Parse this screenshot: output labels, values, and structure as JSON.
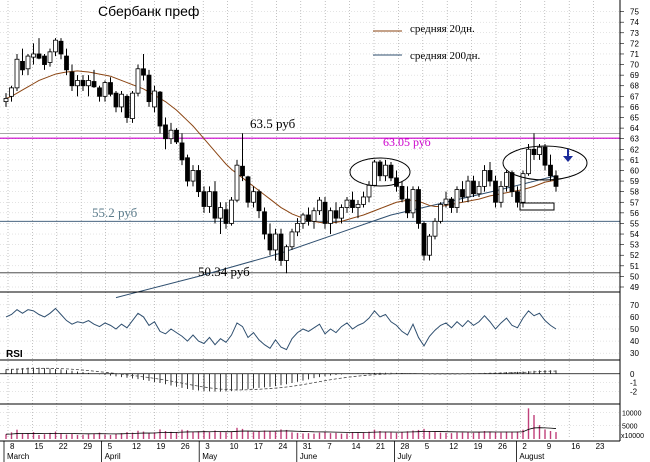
{
  "chart_data": {
    "type": "candlestick",
    "title": "Сбербанк преф",
    "legend": {
      "placement": "top-right",
      "entries": [
        {
          "name": "средняя 20дн.",
          "color": "#8b4513"
        },
        {
          "name": "средняя 200дн.",
          "color": "#2f4f6f"
        }
      ]
    },
    "price_axis": {
      "ylim": [
        49,
        76
      ],
      "ticks": [
        49,
        50,
        51,
        52,
        53,
        54,
        55,
        56,
        57,
        58,
        59,
        60,
        61,
        62,
        63,
        64,
        65,
        66,
        67,
        68,
        69,
        70,
        71,
        72,
        73,
        74,
        75
      ]
    },
    "rsi_axis": {
      "label": "RSI",
      "ylim": [
        26,
        74
      ],
      "ticks": [
        30,
        40,
        50,
        60,
        70
      ]
    },
    "macd_axis": {
      "ylim": [
        -3,
        1
      ],
      "ticks": [
        -2,
        -1,
        0
      ]
    },
    "volume_axis": {
      "ylim": [
        0,
        12000
      ],
      "ticks": [
        10000,
        5000
      ],
      "bottom_label": "x10000"
    },
    "x_axis": {
      "day_ticks": [
        "8",
        "15",
        "22",
        "29",
        "5",
        "12",
        "19",
        "26",
        "3",
        "10",
        "17",
        "24",
        "31",
        "7",
        "14",
        "21",
        "28",
        "5",
        "12",
        "19",
        "26",
        "2",
        "9",
        "16",
        "23"
      ],
      "months": [
        {
          "label": "March",
          "at": 0
        },
        {
          "label": "April",
          "at": 4
        },
        {
          "label": "May",
          "at": 8
        },
        {
          "label": "June",
          "at": 12
        },
        {
          "label": "July",
          "at": 16
        },
        {
          "label": "August",
          "at": 21
        }
      ]
    },
    "horizontal_levels": [
      {
        "value": 63.5,
        "label": "63.5 руб",
        "color": "#999999"
      },
      {
        "value": 63.05,
        "label": "63.05 руб",
        "color": "#cc00cc"
      },
      {
        "value": 55.2,
        "label": "55.2 руб",
        "color": "#2f4f6f"
      },
      {
        "value": 50.34,
        "label": "50.34 руб",
        "color": "#333333"
      }
    ],
    "ohlc": [
      [
        66.5,
        67.3,
        66.0,
        66.8
      ],
      [
        67.0,
        68.0,
        66.5,
        67.8
      ],
      [
        67.8,
        71.0,
        67.5,
        70.5
      ],
      [
        70.3,
        71.5,
        69.0,
        69.5
      ],
      [
        69.6,
        71.0,
        69.0,
        70.8
      ],
      [
        70.7,
        72.0,
        70.0,
        71.0
      ],
      [
        71.0,
        72.5,
        70.5,
        70.6
      ],
      [
        70.8,
        71.0,
        69.5,
        70.0
      ],
      [
        70.2,
        71.5,
        69.8,
        71.2
      ],
      [
        71.2,
        72.5,
        70.8,
        72.3
      ],
      [
        72.2,
        72.5,
        70.5,
        71.0
      ],
      [
        70.8,
        71.5,
        69.0,
        69.5
      ],
      [
        69.3,
        70.0,
        67.5,
        68.0
      ],
      [
        68.0,
        69.0,
        67.0,
        68.5
      ],
      [
        68.5,
        69.0,
        67.5,
        68.0
      ],
      [
        68.0,
        69.0,
        67.0,
        68.5
      ],
      [
        68.4,
        69.5,
        67.8,
        67.9
      ],
      [
        67.8,
        68.0,
        66.5,
        67.0
      ],
      [
        67.0,
        68.5,
        66.5,
        68.3
      ],
      [
        68.3,
        68.8,
        67.0,
        67.2
      ],
      [
        67.3,
        67.5,
        65.5,
        66.0
      ],
      [
        66.0,
        67.5,
        65.5,
        67.2
      ],
      [
        67.0,
        67.2,
        64.5,
        65.0
      ],
      [
        64.9,
        67.5,
        64.5,
        67.3
      ],
      [
        67.3,
        70.0,
        67.0,
        69.6
      ],
      [
        69.6,
        71.0,
        68.5,
        69.0
      ],
      [
        69.0,
        69.5,
        66.0,
        66.5
      ],
      [
        66.0,
        68.0,
        65.5,
        67.5
      ],
      [
        67.4,
        67.5,
        63.5,
        64.2
      ],
      [
        64.3,
        65.0,
        62.0,
        63.0
      ],
      [
        63.0,
        64.5,
        62.5,
        63.8
      ],
      [
        63.8,
        64.0,
        62.5,
        62.7
      ],
      [
        62.6,
        63.5,
        60.5,
        61.0
      ],
      [
        61.2,
        61.5,
        58.5,
        59.0
      ],
      [
        59.0,
        60.5,
        58.5,
        60.0
      ],
      [
        60.0,
        60.5,
        57.5,
        58.0
      ],
      [
        58.0,
        58.5,
        56.0,
        56.6
      ],
      [
        56.6,
        58.5,
        56.0,
        58.0
      ],
      [
        58.0,
        59.0,
        55.0,
        55.5
      ],
      [
        55.5,
        57.0,
        54.0,
        56.5
      ],
      [
        56.3,
        57.0,
        54.5,
        55.0
      ],
      [
        55.0,
        57.5,
        54.8,
        57.2
      ],
      [
        57.2,
        61.0,
        57.0,
        60.5
      ],
      [
        60.4,
        63.5,
        59.0,
        59.5
      ],
      [
        59.4,
        59.5,
        56.5,
        57.0
      ],
      [
        57.0,
        58.5,
        56.5,
        58.0
      ],
      [
        58.0,
        58.2,
        55.5,
        56.2
      ],
      [
        56.1,
        56.5,
        53.5,
        54.0
      ],
      [
        54.0,
        55.0,
        52.0,
        52.5
      ],
      [
        52.5,
        54.5,
        51.5,
        54.0
      ],
      [
        54.0,
        54.5,
        51.0,
        51.5
      ],
      [
        51.5,
        53.0,
        50.3,
        52.8
      ],
      [
        52.8,
        54.5,
        52.5,
        54.2
      ],
      [
        54.2,
        55.5,
        53.8,
        55.0
      ],
      [
        55.0,
        56.0,
        54.5,
        55.8
      ],
      [
        55.8,
        56.5,
        54.8,
        55.2
      ],
      [
        55.2,
        56.5,
        54.5,
        56.2
      ],
      [
        56.2,
        57.5,
        55.8,
        57.2
      ],
      [
        57.0,
        57.5,
        54.5,
        55.0
      ],
      [
        55.0,
        56.5,
        54.0,
        56.2
      ],
      [
        56.2,
        57.0,
        55.0,
        55.5
      ],
      [
        55.5,
        56.8,
        55.0,
        56.5
      ],
      [
        56.5,
        57.5,
        56.0,
        57.2
      ],
      [
        57.2,
        58.0,
        56.0,
        56.5
      ],
      [
        56.5,
        57.2,
        55.5,
        56.8
      ],
      [
        56.8,
        58.0,
        56.5,
        57.5
      ],
      [
        57.5,
        59.0,
        57.0,
        58.6
      ],
      [
        58.6,
        61.0,
        58.5,
        60.8
      ],
      [
        60.8,
        61.0,
        59.0,
        59.5
      ],
      [
        59.5,
        61.0,
        59.0,
        60.5
      ],
      [
        60.5,
        60.8,
        59.0,
        59.3
      ],
      [
        59.3,
        60.0,
        58.0,
        58.5
      ],
      [
        58.5,
        59.0,
        57.0,
        57.3
      ],
      [
        57.3,
        58.5,
        55.5,
        56.0
      ],
      [
        56.0,
        58.5,
        55.5,
        58.2
      ],
      [
        58.2,
        58.5,
        54.5,
        55.0
      ],
      [
        55.0,
        55.2,
        51.5,
        52.0
      ],
      [
        52.0,
        54.0,
        51.5,
        53.8
      ],
      [
        53.8,
        55.5,
        53.5,
        55.2
      ],
      [
        55.2,
        57.0,
        55.0,
        56.8
      ],
      [
        56.8,
        58.0,
        56.5,
        57.3
      ],
      [
        57.3,
        57.5,
        56.0,
        56.5
      ],
      [
        56.5,
        58.5,
        56.0,
        58.2
      ],
      [
        58.2,
        59.0,
        57.0,
        57.5
      ],
      [
        57.5,
        59.5,
        57.0,
        59.0
      ],
      [
        59.0,
        59.5,
        57.5,
        57.8
      ],
      [
        57.8,
        59.0,
        57.5,
        58.5
      ],
      [
        58.5,
        60.5,
        58.0,
        60.0
      ],
      [
        60.0,
        60.8,
        58.5,
        59.0
      ],
      [
        59.0,
        59.5,
        56.5,
        57.0
      ],
      [
        57.0,
        59.0,
        56.5,
        58.5
      ],
      [
        58.5,
        60.0,
        58.0,
        59.8
      ],
      [
        59.8,
        60.0,
        57.5,
        58.0
      ],
      [
        58.0,
        58.5,
        56.5,
        57.0
      ],
      [
        57.0,
        60.0,
        56.5,
        59.7
      ],
      [
        59.7,
        62.5,
        59.5,
        62.0
      ],
      [
        62.0,
        63.5,
        61.0,
        61.5
      ],
      [
        61.5,
        62.5,
        61.0,
        62.2
      ],
      [
        62.2,
        62.5,
        60.0,
        60.5
      ],
      [
        60.5,
        61.5,
        59.0,
        59.5
      ],
      [
        59.5,
        60.0,
        58.0,
        58.5
      ]
    ],
    "sma20": [
      66.8,
      67.0,
      67.3,
      67.6,
      67.9,
      68.2,
      68.5,
      68.7,
      68.9,
      69.1,
      69.2,
      69.3,
      69.35,
      69.4,
      69.35,
      69.3,
      69.2,
      69.1,
      69.0,
      68.9,
      68.7,
      68.5,
      68.3,
      68.1,
      67.9,
      67.7,
      67.4,
      67.1,
      66.8,
      66.5,
      66.1,
      65.7,
      65.2,
      64.7,
      64.2,
      63.6,
      63.0,
      62.4,
      61.8,
      61.2,
      60.6,
      60.1,
      59.7,
      59.3,
      58.9,
      58.5,
      58.1,
      57.7,
      57.3,
      56.9,
      56.5,
      56.2,
      55.9,
      55.7,
      55.5,
      55.3,
      55.2,
      55.1,
      55.05,
      55.05,
      55.1,
      55.2,
      55.35,
      55.5,
      55.65,
      55.8,
      56.0,
      56.2,
      56.4,
      56.6,
      56.8,
      57.0,
      57.1,
      57.2,
      57.2,
      57.1,
      56.9,
      56.7,
      56.6,
      56.6,
      56.7,
      56.8,
      56.9,
      57.0,
      57.1,
      57.2,
      57.3,
      57.45,
      57.6,
      57.7,
      57.8,
      57.9,
      58.0,
      58.1,
      58.2,
      58.35,
      58.5,
      58.7,
      58.9,
      59.0,
      59.1
    ],
    "sma200_points": [
      [
        20,
        48.0
      ],
      [
        35,
        50.0
      ],
      [
        50,
        52.2
      ],
      [
        60,
        54.0
      ],
      [
        70,
        55.8
      ],
      [
        80,
        57.0
      ],
      [
        90,
        58.2
      ],
      [
        100,
        59.5
      ]
    ],
    "rsi": [
      60,
      62,
      66,
      63,
      66,
      65,
      62,
      60,
      63,
      67,
      62,
      57,
      54,
      56,
      55,
      57,
      54,
      52,
      55,
      53,
      50,
      54,
      51,
      57,
      63,
      60,
      53,
      56,
      48,
      46,
      50,
      47,
      44,
      40,
      45,
      40,
      38,
      43,
      37,
      42,
      39,
      45,
      55,
      52,
      43,
      47,
      41,
      37,
      34,
      41,
      35,
      33,
      42,
      47,
      50,
      48,
      51,
      54,
      46,
      50,
      47,
      52,
      55,
      50,
      53,
      55,
      59,
      65,
      60,
      62,
      56,
      53,
      48,
      45,
      54,
      43,
      36,
      44,
      49,
      53,
      55,
      51,
      56,
      52,
      57,
      53,
      56,
      61,
      56,
      50,
      55,
      59,
      53,
      51,
      59,
      65,
      61,
      63,
      57,
      53,
      50
    ],
    "macd": [
      0.5,
      0.55,
      0.6,
      0.65,
      0.7,
      0.7,
      0.7,
      0.65,
      0.6,
      0.55,
      0.5,
      0.42,
      0.34,
      0.26,
      0.18,
      0.1,
      0.02,
      -0.06,
      -0.14,
      -0.22,
      -0.3,
      -0.38,
      -0.46,
      -0.54,
      -0.62,
      -0.72,
      -0.82,
      -0.94,
      -1.06,
      -1.2,
      -1.34,
      -1.48,
      -1.62,
      -1.74,
      -1.84,
      -1.92,
      -1.98,
      -2.02,
      -2.04,
      -2.04,
      -2.02,
      -1.98,
      -1.92,
      -1.84,
      -1.76,
      -1.68,
      -1.62,
      -1.56,
      -1.5,
      -1.42,
      -1.32,
      -1.2,
      -1.06,
      -0.92,
      -0.78,
      -0.64,
      -0.5,
      -0.38,
      -0.28,
      -0.2,
      -0.14,
      -0.08,
      -0.03,
      0.01,
      0.04,
      0.06,
      0.08,
      0.1,
      0.12,
      0.12,
      0.11,
      0.1,
      0.08,
      0.05,
      0.02,
      -0.02,
      -0.06,
      -0.08,
      -0.08,
      -0.06,
      -0.04,
      -0.02,
      0.0,
      0.02,
      0.04,
      0.06,
      0.08,
      0.1,
      0.12,
      0.14,
      0.16,
      0.18,
      0.2,
      0.22,
      0.26,
      0.3,
      0.34,
      0.38,
      0.4,
      0.4,
      0.38
    ],
    "volume": [
      1800,
      2500,
      3500,
      2200,
      2000,
      2600,
      1500,
      1800,
      2300,
      2800,
      2000,
      1700,
      1900,
      1500,
      1600,
      1800,
      2100,
      2400,
      1700,
      1500,
      1900,
      2200,
      2600,
      2400,
      3100,
      2800,
      2200,
      2500,
      3600,
      3000,
      2700,
      2600,
      3500,
      3300,
      2800,
      2900,
      3100,
      2600,
      3200,
      2800,
      2500,
      2700,
      4200,
      3800,
      2900,
      2600,
      2800,
      3200,
      3000,
      2700,
      3600,
      3400,
      2500,
      2300,
      2100,
      2200,
      2000,
      2400,
      2600,
      2200,
      2300,
      2000,
      2100,
      2500,
      2200,
      2400,
      2800,
      3500,
      3000,
      2700,
      2500,
      2300,
      2600,
      2900,
      3200,
      3400,
      3800,
      2900,
      2600,
      2400,
      2300,
      2200,
      2500,
      2400,
      2600,
      2300,
      2500,
      3000,
      2800,
      2500,
      2400,
      2700,
      2600,
      2800,
      3500,
      11500,
      9000,
      5200,
      3600,
      3000,
      2600
    ]
  }
}
